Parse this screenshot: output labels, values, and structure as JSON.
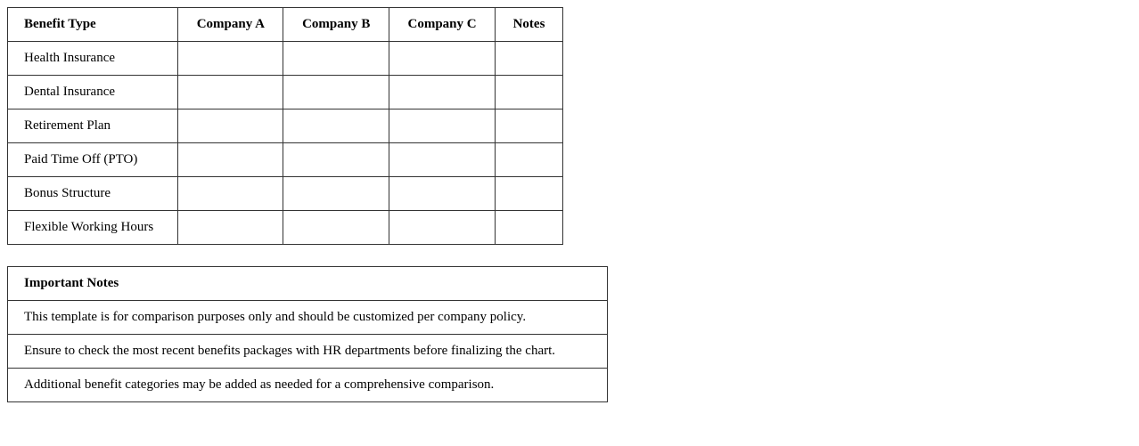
{
  "benefits_table": {
    "headers": [
      "Benefit Type",
      "Company A",
      "Company B",
      "Company C",
      "Notes"
    ],
    "rows": [
      [
        "Health Insurance",
        "",
        "",
        "",
        ""
      ],
      [
        "Dental Insurance",
        "",
        "",
        "",
        ""
      ],
      [
        "Retirement Plan",
        "",
        "",
        "",
        ""
      ],
      [
        "Paid Time Off (PTO)",
        "",
        "",
        "",
        ""
      ],
      [
        "Bonus Structure",
        "",
        "",
        "",
        ""
      ],
      [
        "Flexible Working Hours",
        "",
        "",
        "",
        ""
      ]
    ]
  },
  "notes_table": {
    "header": "Important Notes",
    "items": [
      "This template is for comparison purposes only and should be customized per company policy.",
      "Ensure to check the most recent benefits packages with HR departments before finalizing the chart.",
      "Additional benefit categories may be added as needed for a comprehensive comparison."
    ]
  }
}
